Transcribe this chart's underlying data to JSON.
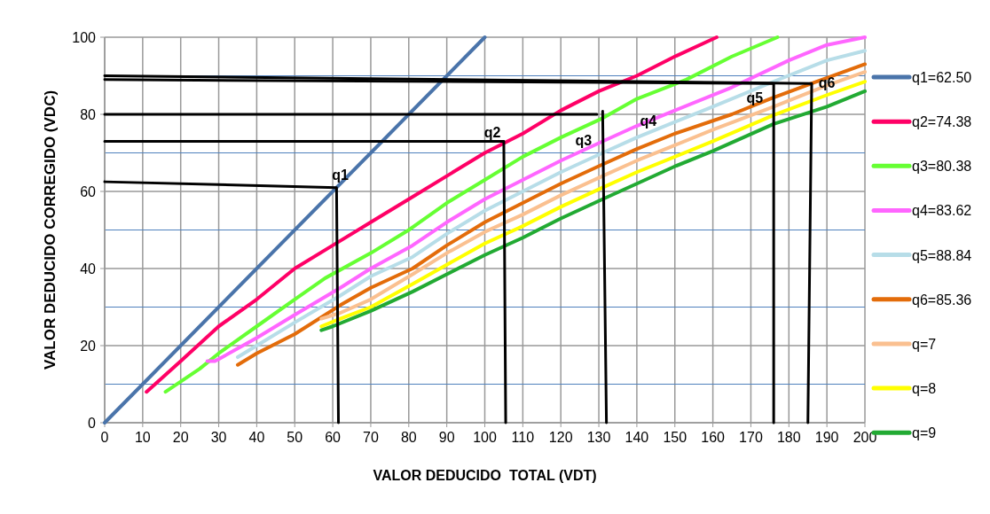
{
  "chart_data": {
    "type": "line",
    "xlabel": "VALOR DEDUCIDO  TOTAL (VDT)",
    "ylabel": "VALOR DEDUCIDO CORREGIDO (VDC)",
    "xlim": [
      0,
      200
    ],
    "xticks": [
      0,
      10,
      20,
      30,
      40,
      50,
      60,
      70,
      80,
      90,
      100,
      110,
      120,
      130,
      140,
      150,
      160,
      170,
      180,
      190,
      200
    ],
    "ylim": [
      0,
      100
    ],
    "yticks": [
      0,
      20,
      40,
      60,
      80,
      100
    ],
    "grid": true,
    "legend": "right",
    "marker": "none",
    "line_style": "solid",
    "ref_lines": [
      {
        "axis": "y",
        "value": 10,
        "color": "#4f81bd"
      },
      {
        "axis": "y",
        "value": 30,
        "color": "#4f81bd"
      },
      {
        "axis": "y",
        "value": 50,
        "color": "#4f81bd"
      },
      {
        "axis": "y",
        "value": 70,
        "color": "#4f81bd"
      },
      {
        "axis": "y",
        "value": 90,
        "color": "#4f81bd"
      }
    ],
    "annotations": [
      {
        "text": "q1",
        "x": 62,
        "y": 62
      },
      {
        "text": "q2",
        "x": 102,
        "y": 73
      },
      {
        "text": "q3",
        "x": 126,
        "y": 71
      },
      {
        "text": "q4",
        "x": 143,
        "y": 76
      },
      {
        "text": "q5",
        "x": 171,
        "y": 82
      },
      {
        "text": "q6",
        "x": 190,
        "y": 86
      }
    ],
    "series": [
      {
        "name": "q1=62.50",
        "color": "#4a74aa",
        "x": [
          0,
          100
        ],
        "values": [
          0,
          100
        ]
      },
      {
        "name": "q2=74.38",
        "color": "#ff0066",
        "x": [
          11,
          20,
          30,
          40,
          50,
          60,
          70,
          80,
          90,
          100,
          110,
          120,
          130,
          140,
          150,
          161
        ],
        "values": [
          8,
          16,
          25,
          32,
          40,
          46,
          52,
          58,
          64,
          70,
          75,
          81,
          86,
          90,
          95,
          100
        ]
      },
      {
        "name": "q3=80.38",
        "color": "#66ff33",
        "x": [
          16,
          25,
          30,
          40,
          50,
          58,
          70,
          80,
          90,
          100,
          110,
          120,
          131,
          140,
          153,
          165,
          177
        ],
        "values": [
          8,
          14,
          18,
          25,
          32,
          37.5,
          44,
          50,
          57,
          63,
          69,
          74,
          79,
          84,
          89,
          95,
          100
        ]
      },
      {
        "name": "q4=83.62",
        "color": "#ff66ff",
        "x": [
          27,
          29,
          30,
          40,
          50,
          62,
          70,
          81,
          90,
          100,
          110,
          120,
          131,
          140,
          150,
          165,
          180,
          190,
          200
        ],
        "values": [
          16,
          16,
          16.5,
          22,
          28,
          35,
          40,
          46,
          52,
          58,
          63,
          68,
          73,
          77,
          81,
          87,
          94,
          98,
          100
        ]
      },
      {
        "name": "q5=88.84",
        "color": "#b7dde8",
        "x": [
          35,
          40,
          50,
          62,
          70,
          81,
          90,
          100,
          110,
          120,
          131,
          140,
          150,
          160,
          176,
          190,
          200
        ],
        "values": [
          17,
          20,
          26,
          33,
          38,
          43,
          49,
          55,
          60,
          65,
          70,
          74,
          78,
          82,
          88.5,
          94,
          96.5
        ]
      },
      {
        "name": "q6=85.36",
        "color": "#e36c0a",
        "x": [
          35,
          40,
          50,
          62,
          70,
          81,
          90,
          100,
          110,
          120,
          131,
          140,
          150,
          165,
          175,
          186,
          200
        ],
        "values": [
          15,
          18,
          23,
          30.5,
          35,
          40,
          46,
          52,
          57,
          62,
          67,
          71,
          75,
          80,
          84,
          88,
          93
        ]
      },
      {
        "name": "q=7",
        "color": "#fac090",
        "x": [
          57,
          62,
          70,
          81,
          90,
          100,
          110,
          120,
          131,
          140,
          150,
          160,
          176,
          190,
          200
        ],
        "values": [
          27,
          28.5,
          32,
          38.5,
          44,
          49.5,
          54,
          59,
          64,
          68,
          72,
          76,
          82,
          87.5,
          91
        ]
      },
      {
        "name": "q=8",
        "color": "#ffff00",
        "x": [
          57,
          62,
          70,
          81,
          90,
          100,
          110,
          120,
          131,
          140,
          150,
          160,
          176,
          190,
          200
        ],
        "values": [
          25,
          27,
          30,
          36,
          41,
          46.5,
          51,
          56,
          61,
          65,
          69,
          73,
          79.8,
          85,
          88.5
        ]
      },
      {
        "name": "q=9",
        "color": "#22aa33",
        "x": [
          57,
          60,
          70,
          81,
          90,
          100,
          110,
          120,
          131,
          140,
          150,
          160,
          176,
          190,
          200
        ],
        "values": [
          24,
          25,
          29,
          34,
          38.5,
          43.5,
          48,
          53,
          58,
          62,
          66.5,
          70.5,
          77.5,
          82,
          86
        ]
      },
      {
        "color": "#000000",
        "x": [
          0,
          61,
          61.5
        ],
        "values": [
          62.5,
          61,
          0
        ]
      },
      {
        "color": "#000000",
        "x": [
          0,
          105,
          105.5
        ],
        "values": [
          73,
          73,
          0
        ]
      },
      {
        "color": "#000000",
        "x": [
          0,
          129.5
        ],
        "values": [
          80,
          80
        ]
      },
      {
        "color": "#000000",
        "x": [
          131,
          132
        ],
        "values": [
          80.8,
          0
        ]
      },
      {
        "color": "#000000",
        "x": [
          0,
          186,
          185
        ],
        "values": [
          90,
          88,
          0
        ]
      },
      {
        "color": "#000000",
        "x": [
          0,
          176,
          176
        ],
        "values": [
          89,
          88,
          0
        ]
      }
    ]
  }
}
